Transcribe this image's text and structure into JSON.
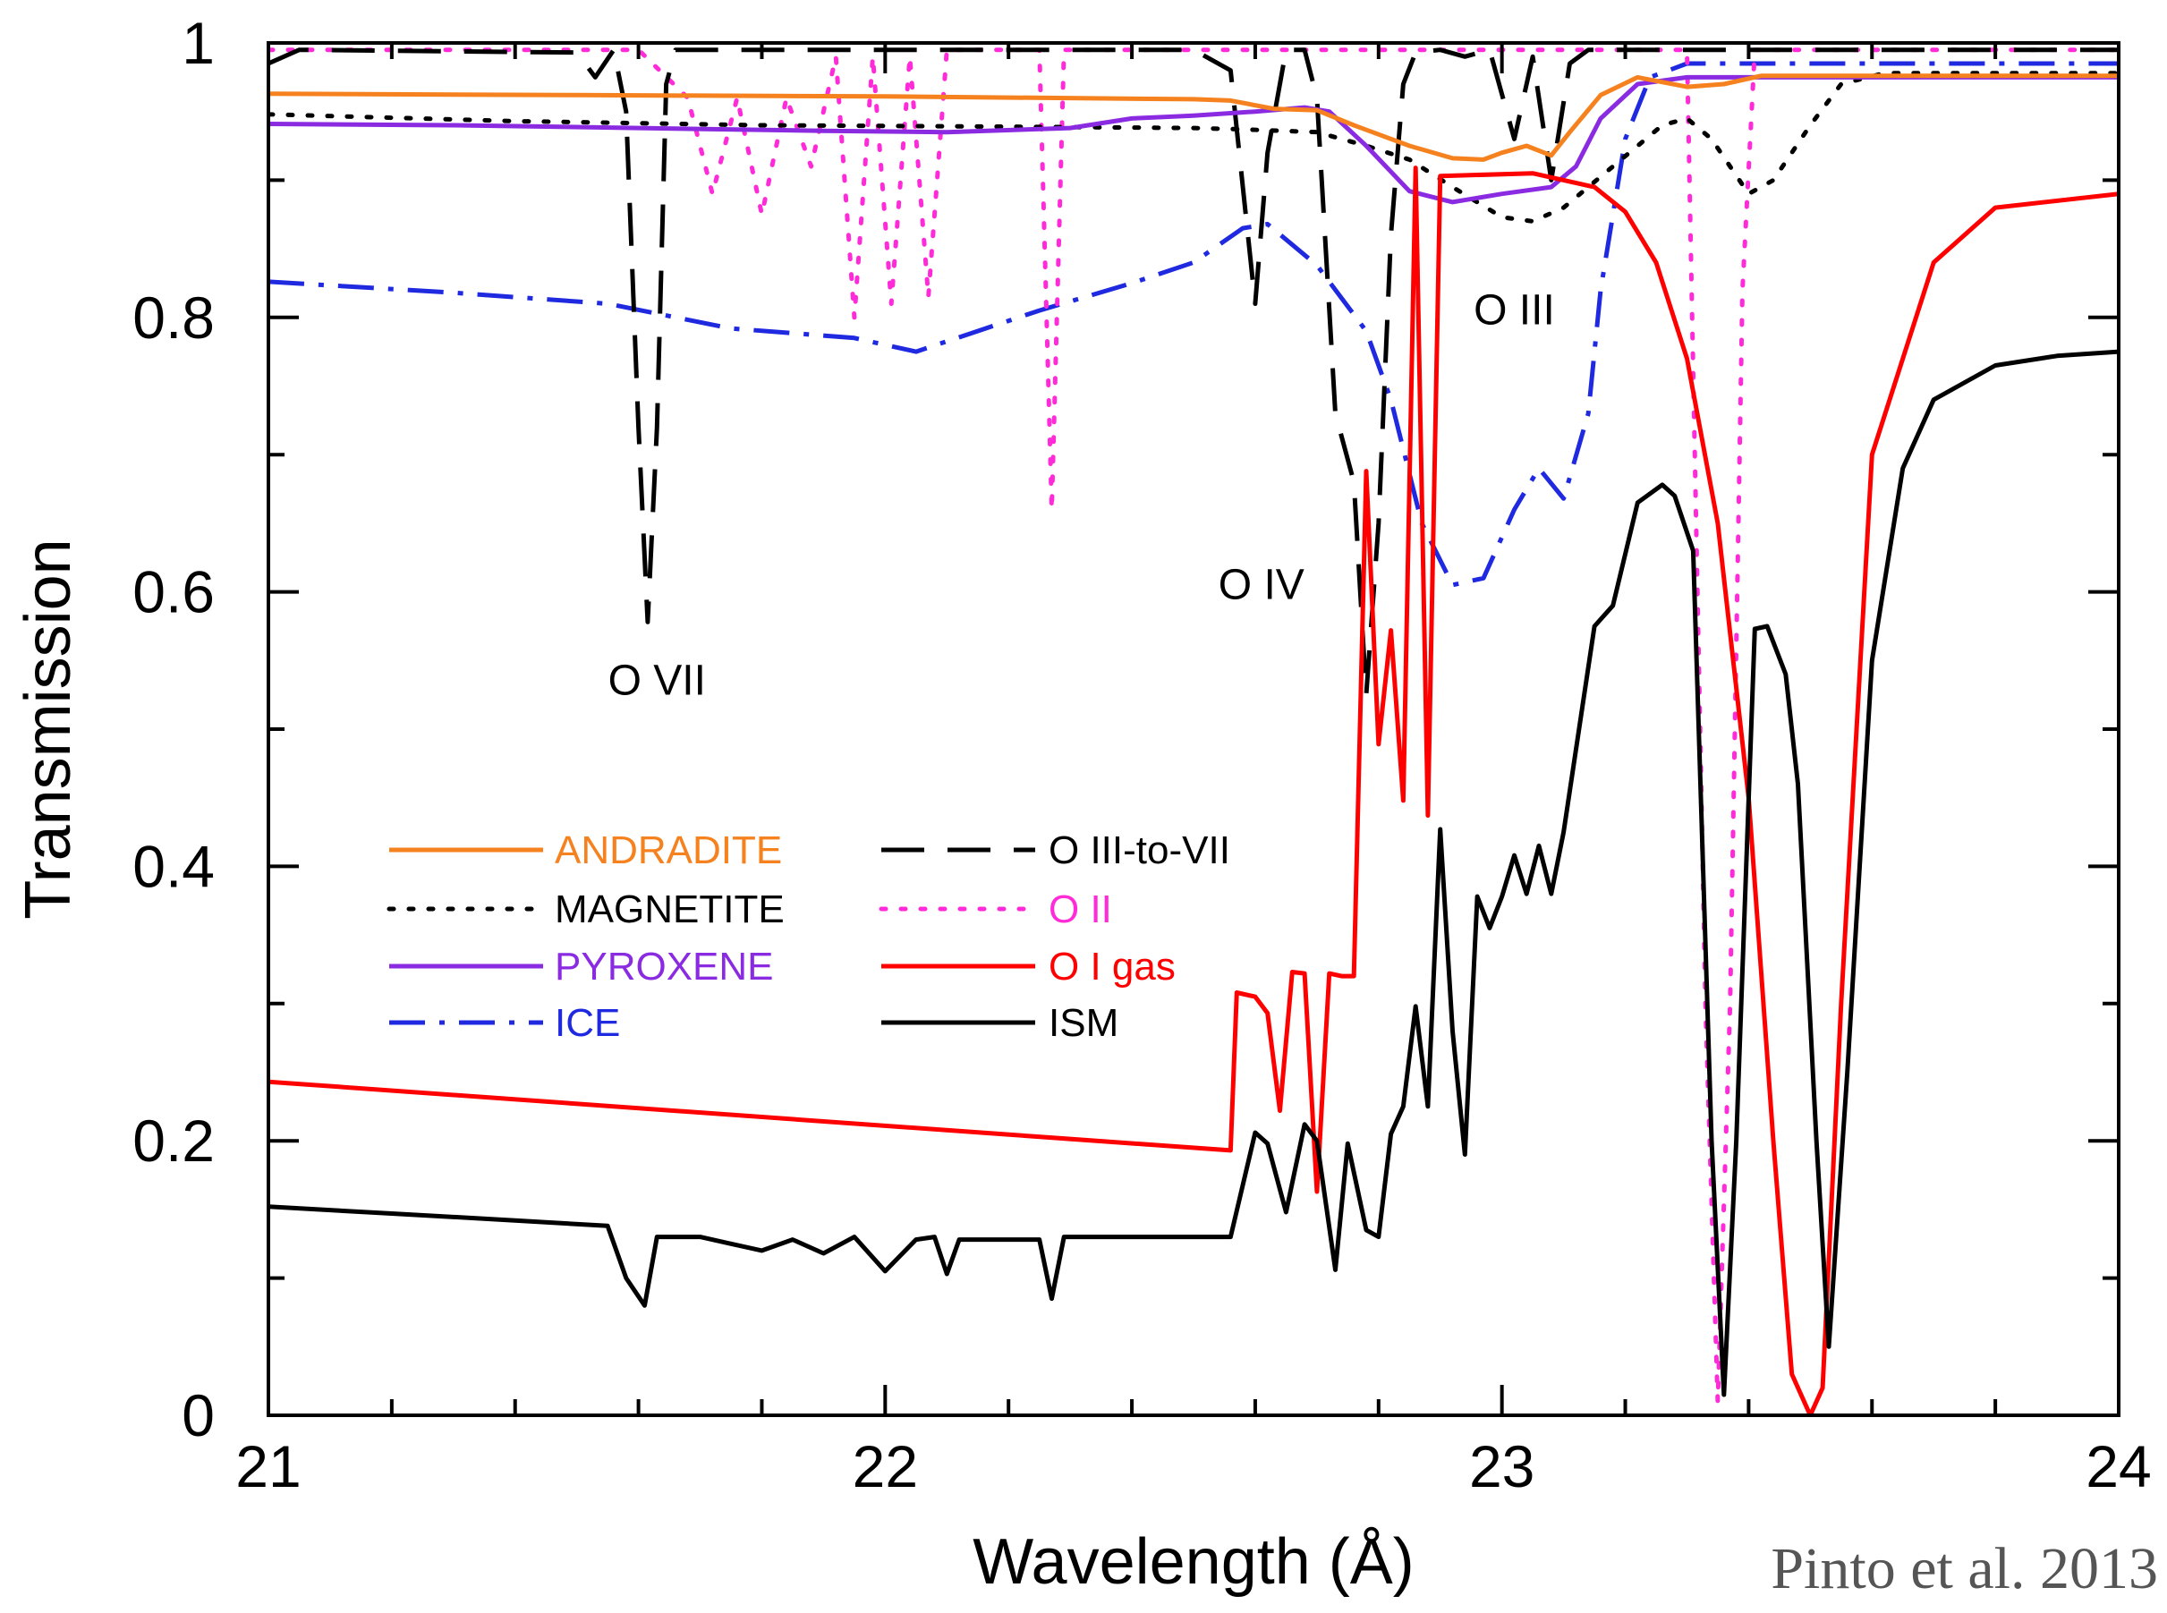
{
  "chart_data": {
    "type": "line",
    "xlabel": "Wavelength (Å)",
    "ylabel": "Transmission",
    "xlim": [
      21,
      24
    ],
    "ylim": [
      0,
      1
    ],
    "xticks": [
      21,
      22,
      23,
      24
    ],
    "yticks": [
      0,
      0.2,
      0.4,
      0.6,
      0.8,
      1
    ],
    "xtick_labels": [
      "21",
      "22",
      "23",
      "24"
    ],
    "ytick_labels": [
      "0",
      "0.2",
      "0.4",
      "0.6",
      "0.8",
      "1"
    ],
    "x_minor_step": 0.2,
    "y_minor_step": 0.1,
    "grid": false,
    "legend_position": "center-left",
    "credit": "Pinto et al. 2013",
    "annotations": [
      {
        "text": "O VII",
        "x": 21.63,
        "y": 0.525
      },
      {
        "text": "O IV",
        "x": 22.61,
        "y": 0.595
      },
      {
        "text": "O III",
        "x": 23.02,
        "y": 0.795
      }
    ],
    "series": [
      {
        "name": "ANDRADITE",
        "color": "#f5821f",
        "dash": "solid",
        "width": 5,
        "points": [
          [
            21.0,
            0.963
          ],
          [
            21.5,
            0.962
          ],
          [
            22.0,
            0.961
          ],
          [
            22.5,
            0.959
          ],
          [
            22.56,
            0.958
          ],
          [
            22.63,
            0.952
          ],
          [
            22.7,
            0.951
          ],
          [
            22.76,
            0.94
          ],
          [
            22.85,
            0.925
          ],
          [
            22.92,
            0.916
          ],
          [
            22.97,
            0.915
          ],
          [
            23.0,
            0.92
          ],
          [
            23.04,
            0.925
          ],
          [
            23.08,
            0.918
          ],
          [
            23.11,
            0.935
          ],
          [
            23.16,
            0.962
          ],
          [
            23.22,
            0.975
          ],
          [
            23.3,
            0.968
          ],
          [
            23.36,
            0.97
          ],
          [
            23.42,
            0.976
          ],
          [
            23.6,
            0.976
          ],
          [
            24.0,
            0.976
          ]
        ]
      },
      {
        "name": "MAGNETITE",
        "color": "#000000",
        "dash": "dotted",
        "width": 5,
        "points": [
          [
            21.0,
            0.948
          ],
          [
            21.4,
            0.943
          ],
          [
            21.8,
            0.94
          ],
          [
            22.2,
            0.939
          ],
          [
            22.5,
            0.938
          ],
          [
            22.58,
            0.937
          ],
          [
            22.7,
            0.935
          ],
          [
            22.78,
            0.925
          ],
          [
            22.85,
            0.915
          ],
          [
            22.92,
            0.895
          ],
          [
            23.0,
            0.873
          ],
          [
            23.05,
            0.87
          ],
          [
            23.1,
            0.88
          ],
          [
            23.18,
            0.91
          ],
          [
            23.26,
            0.94
          ],
          [
            23.3,
            0.945
          ],
          [
            23.34,
            0.93
          ],
          [
            23.4,
            0.89
          ],
          [
            23.44,
            0.9
          ],
          [
            23.5,
            0.94
          ],
          [
            23.55,
            0.97
          ],
          [
            23.62,
            0.978
          ],
          [
            24.0,
            0.978
          ]
        ]
      },
      {
        "name": "PYROXENE",
        "color": "#8a2be2",
        "dash": "solid",
        "width": 5,
        "points": [
          [
            21.0,
            0.941
          ],
          [
            21.3,
            0.94
          ],
          [
            21.6,
            0.938
          ],
          [
            21.9,
            0.936
          ],
          [
            22.1,
            0.935
          ],
          [
            22.3,
            0.938
          ],
          [
            22.4,
            0.945
          ],
          [
            22.5,
            0.947
          ],
          [
            22.6,
            0.95
          ],
          [
            22.68,
            0.953
          ],
          [
            22.72,
            0.95
          ],
          [
            22.78,
            0.925
          ],
          [
            22.85,
            0.892
          ],
          [
            22.92,
            0.884
          ],
          [
            23.0,
            0.89
          ],
          [
            23.08,
            0.895
          ],
          [
            23.12,
            0.91
          ],
          [
            23.16,
            0.945
          ],
          [
            23.22,
            0.97
          ],
          [
            23.3,
            0.975
          ],
          [
            24.0,
            0.975
          ]
        ]
      },
      {
        "name": "ICE",
        "color": "#1f29e0",
        "dash": "dashdot",
        "width": 5,
        "points": [
          [
            21.0,
            0.826
          ],
          [
            21.3,
            0.818
          ],
          [
            21.55,
            0.81
          ],
          [
            21.75,
            0.792
          ],
          [
            21.95,
            0.785
          ],
          [
            22.05,
            0.775
          ],
          [
            22.15,
            0.79
          ],
          [
            22.25,
            0.805
          ],
          [
            22.4,
            0.825
          ],
          [
            22.5,
            0.84
          ],
          [
            22.58,
            0.865
          ],
          [
            22.62,
            0.868
          ],
          [
            22.7,
            0.838
          ],
          [
            22.78,
            0.79
          ],
          [
            22.82,
            0.74
          ],
          [
            22.87,
            0.65
          ],
          [
            22.92,
            0.605
          ],
          [
            22.97,
            0.61
          ],
          [
            23.02,
            0.66
          ],
          [
            23.06,
            0.69
          ],
          [
            23.1,
            0.668
          ],
          [
            23.14,
            0.73
          ],
          [
            23.16,
            0.82
          ],
          [
            23.2,
            0.93
          ],
          [
            23.24,
            0.975
          ],
          [
            23.3,
            0.985
          ],
          [
            24.0,
            0.985
          ]
        ]
      },
      {
        "name": "O III-to-VII",
        "color": "#000000",
        "dash": "longdash",
        "width": 5,
        "points": [
          [
            21.0,
            0.985
          ],
          [
            21.05,
            0.995
          ],
          [
            21.5,
            0.993
          ],
          [
            21.53,
            0.975
          ],
          [
            21.56,
            0.995
          ],
          [
            21.58,
            0.95
          ],
          [
            21.6,
            0.72
          ],
          [
            21.615,
            0.578
          ],
          [
            21.63,
            0.72
          ],
          [
            21.645,
            0.97
          ],
          [
            21.66,
            0.995
          ],
          [
            22.0,
            0.995
          ],
          [
            22.5,
            0.995
          ],
          [
            22.56,
            0.98
          ],
          [
            22.58,
            0.895
          ],
          [
            22.6,
            0.81
          ],
          [
            22.62,
            0.92
          ],
          [
            22.65,
            0.995
          ],
          [
            22.68,
            0.995
          ],
          [
            22.7,
            0.96
          ],
          [
            22.73,
            0.73
          ],
          [
            22.76,
            0.68
          ],
          [
            22.78,
            0.525
          ],
          [
            22.8,
            0.65
          ],
          [
            22.82,
            0.86
          ],
          [
            22.84,
            0.97
          ],
          [
            22.86,
            0.993
          ],
          [
            22.9,
            0.995
          ],
          [
            22.94,
            0.99
          ],
          [
            22.98,
            0.995
          ],
          [
            23.02,
            0.93
          ],
          [
            23.05,
            0.99
          ],
          [
            23.08,
            0.9
          ],
          [
            23.11,
            0.985
          ],
          [
            23.14,
            0.995
          ],
          [
            24.0,
            0.995
          ]
        ]
      },
      {
        "name": "O II",
        "color": "#ff2bd8",
        "dash": "dotted",
        "width": 5,
        "points": [
          [
            21.0,
            0.995
          ],
          [
            21.6,
            0.995
          ],
          [
            21.68,
            0.96
          ],
          [
            21.72,
            0.89
          ],
          [
            21.76,
            0.96
          ],
          [
            21.8,
            0.875
          ],
          [
            21.84,
            0.96
          ],
          [
            21.88,
            0.91
          ],
          [
            21.92,
            0.99
          ],
          [
            21.95,
            0.8
          ],
          [
            21.98,
            0.99
          ],
          [
            22.01,
            0.81
          ],
          [
            22.04,
            0.99
          ],
          [
            22.07,
            0.815
          ],
          [
            22.1,
            0.995
          ],
          [
            22.25,
            0.995
          ],
          [
            22.27,
            0.66
          ],
          [
            22.29,
            0.995
          ],
          [
            23.0,
            0.995
          ],
          [
            23.3,
            0.995
          ],
          [
            23.33,
            0.3
          ],
          [
            23.35,
            0.01
          ],
          [
            23.37,
            0.3
          ],
          [
            23.39,
            0.82
          ],
          [
            23.41,
            0.995
          ],
          [
            24.0,
            0.995
          ]
        ]
      },
      {
        "name": "O I gas",
        "color": "#ff0000",
        "dash": "solid",
        "width": 5,
        "points": [
          [
            21.0,
            0.243
          ],
          [
            22.56,
            0.193
          ],
          [
            22.57,
            0.308
          ],
          [
            22.6,
            0.305
          ],
          [
            22.62,
            0.293
          ],
          [
            22.64,
            0.222
          ],
          [
            22.66,
            0.323
          ],
          [
            22.68,
            0.322
          ],
          [
            22.7,
            0.163
          ],
          [
            22.72,
            0.322
          ],
          [
            22.74,
            0.32
          ],
          [
            22.76,
            0.32
          ],
          [
            22.78,
            0.688
          ],
          [
            22.8,
            0.489
          ],
          [
            22.82,
            0.572
          ],
          [
            22.84,
            0.448
          ],
          [
            22.86,
            0.909
          ],
          [
            22.88,
            0.437
          ],
          [
            22.9,
            0.903
          ],
          [
            23.05,
            0.905
          ],
          [
            23.15,
            0.895
          ],
          [
            23.2,
            0.877
          ],
          [
            23.25,
            0.84
          ],
          [
            23.3,
            0.77
          ],
          [
            23.35,
            0.65
          ],
          [
            23.4,
            0.45
          ],
          [
            23.44,
            0.2
          ],
          [
            23.47,
            0.03
          ],
          [
            23.5,
            0.0
          ],
          [
            23.52,
            0.02
          ],
          [
            23.55,
            0.3
          ],
          [
            23.6,
            0.7
          ],
          [
            23.7,
            0.84
          ],
          [
            23.8,
            0.88
          ],
          [
            24.0,
            0.89
          ]
        ]
      },
      {
        "name": "ISM",
        "color": "#000000",
        "dash": "solid",
        "width": 5,
        "points": [
          [
            21.0,
            0.152
          ],
          [
            21.2,
            0.147
          ],
          [
            21.4,
            0.142
          ],
          [
            21.55,
            0.138
          ],
          [
            21.58,
            0.1
          ],
          [
            21.61,
            0.08
          ],
          [
            21.63,
            0.13
          ],
          [
            21.7,
            0.13
          ],
          [
            21.75,
            0.125
          ],
          [
            21.8,
            0.12
          ],
          [
            21.85,
            0.128
          ],
          [
            21.9,
            0.118
          ],
          [
            21.95,
            0.13
          ],
          [
            22.0,
            0.105
          ],
          [
            22.05,
            0.128
          ],
          [
            22.08,
            0.13
          ],
          [
            22.1,
            0.103
          ],
          [
            22.12,
            0.128
          ],
          [
            22.25,
            0.128
          ],
          [
            22.27,
            0.085
          ],
          [
            22.29,
            0.13
          ],
          [
            22.56,
            0.13
          ],
          [
            22.6,
            0.206
          ],
          [
            22.62,
            0.198
          ],
          [
            22.65,
            0.148
          ],
          [
            22.68,
            0.212
          ],
          [
            22.7,
            0.2
          ],
          [
            22.73,
            0.106
          ],
          [
            22.75,
            0.198
          ],
          [
            22.78,
            0.135
          ],
          [
            22.8,
            0.13
          ],
          [
            22.82,
            0.205
          ],
          [
            22.84,
            0.225
          ],
          [
            22.86,
            0.298
          ],
          [
            22.88,
            0.225
          ],
          [
            22.9,
            0.427
          ],
          [
            22.92,
            0.28
          ],
          [
            22.94,
            0.19
          ],
          [
            22.96,
            0.378
          ],
          [
            22.98,
            0.355
          ],
          [
            23.0,
            0.378
          ],
          [
            23.02,
            0.408
          ],
          [
            23.04,
            0.38
          ],
          [
            23.06,
            0.415
          ],
          [
            23.08,
            0.38
          ],
          [
            23.1,
            0.425
          ],
          [
            23.15,
            0.575
          ],
          [
            23.18,
            0.59
          ],
          [
            23.22,
            0.665
          ],
          [
            23.26,
            0.678
          ],
          [
            23.28,
            0.67
          ],
          [
            23.31,
            0.63
          ],
          [
            23.34,
            0.2
          ],
          [
            23.36,
            0.015
          ],
          [
            23.38,
            0.2
          ],
          [
            23.41,
            0.573
          ],
          [
            23.43,
            0.575
          ],
          [
            23.46,
            0.54
          ],
          [
            23.48,
            0.46
          ],
          [
            23.51,
            0.2
          ],
          [
            23.53,
            0.05
          ],
          [
            23.56,
            0.25
          ],
          [
            23.6,
            0.55
          ],
          [
            23.65,
            0.69
          ],
          [
            23.7,
            0.74
          ],
          [
            23.8,
            0.765
          ],
          [
            23.9,
            0.772
          ],
          [
            24.0,
            0.775
          ]
        ]
      }
    ]
  }
}
